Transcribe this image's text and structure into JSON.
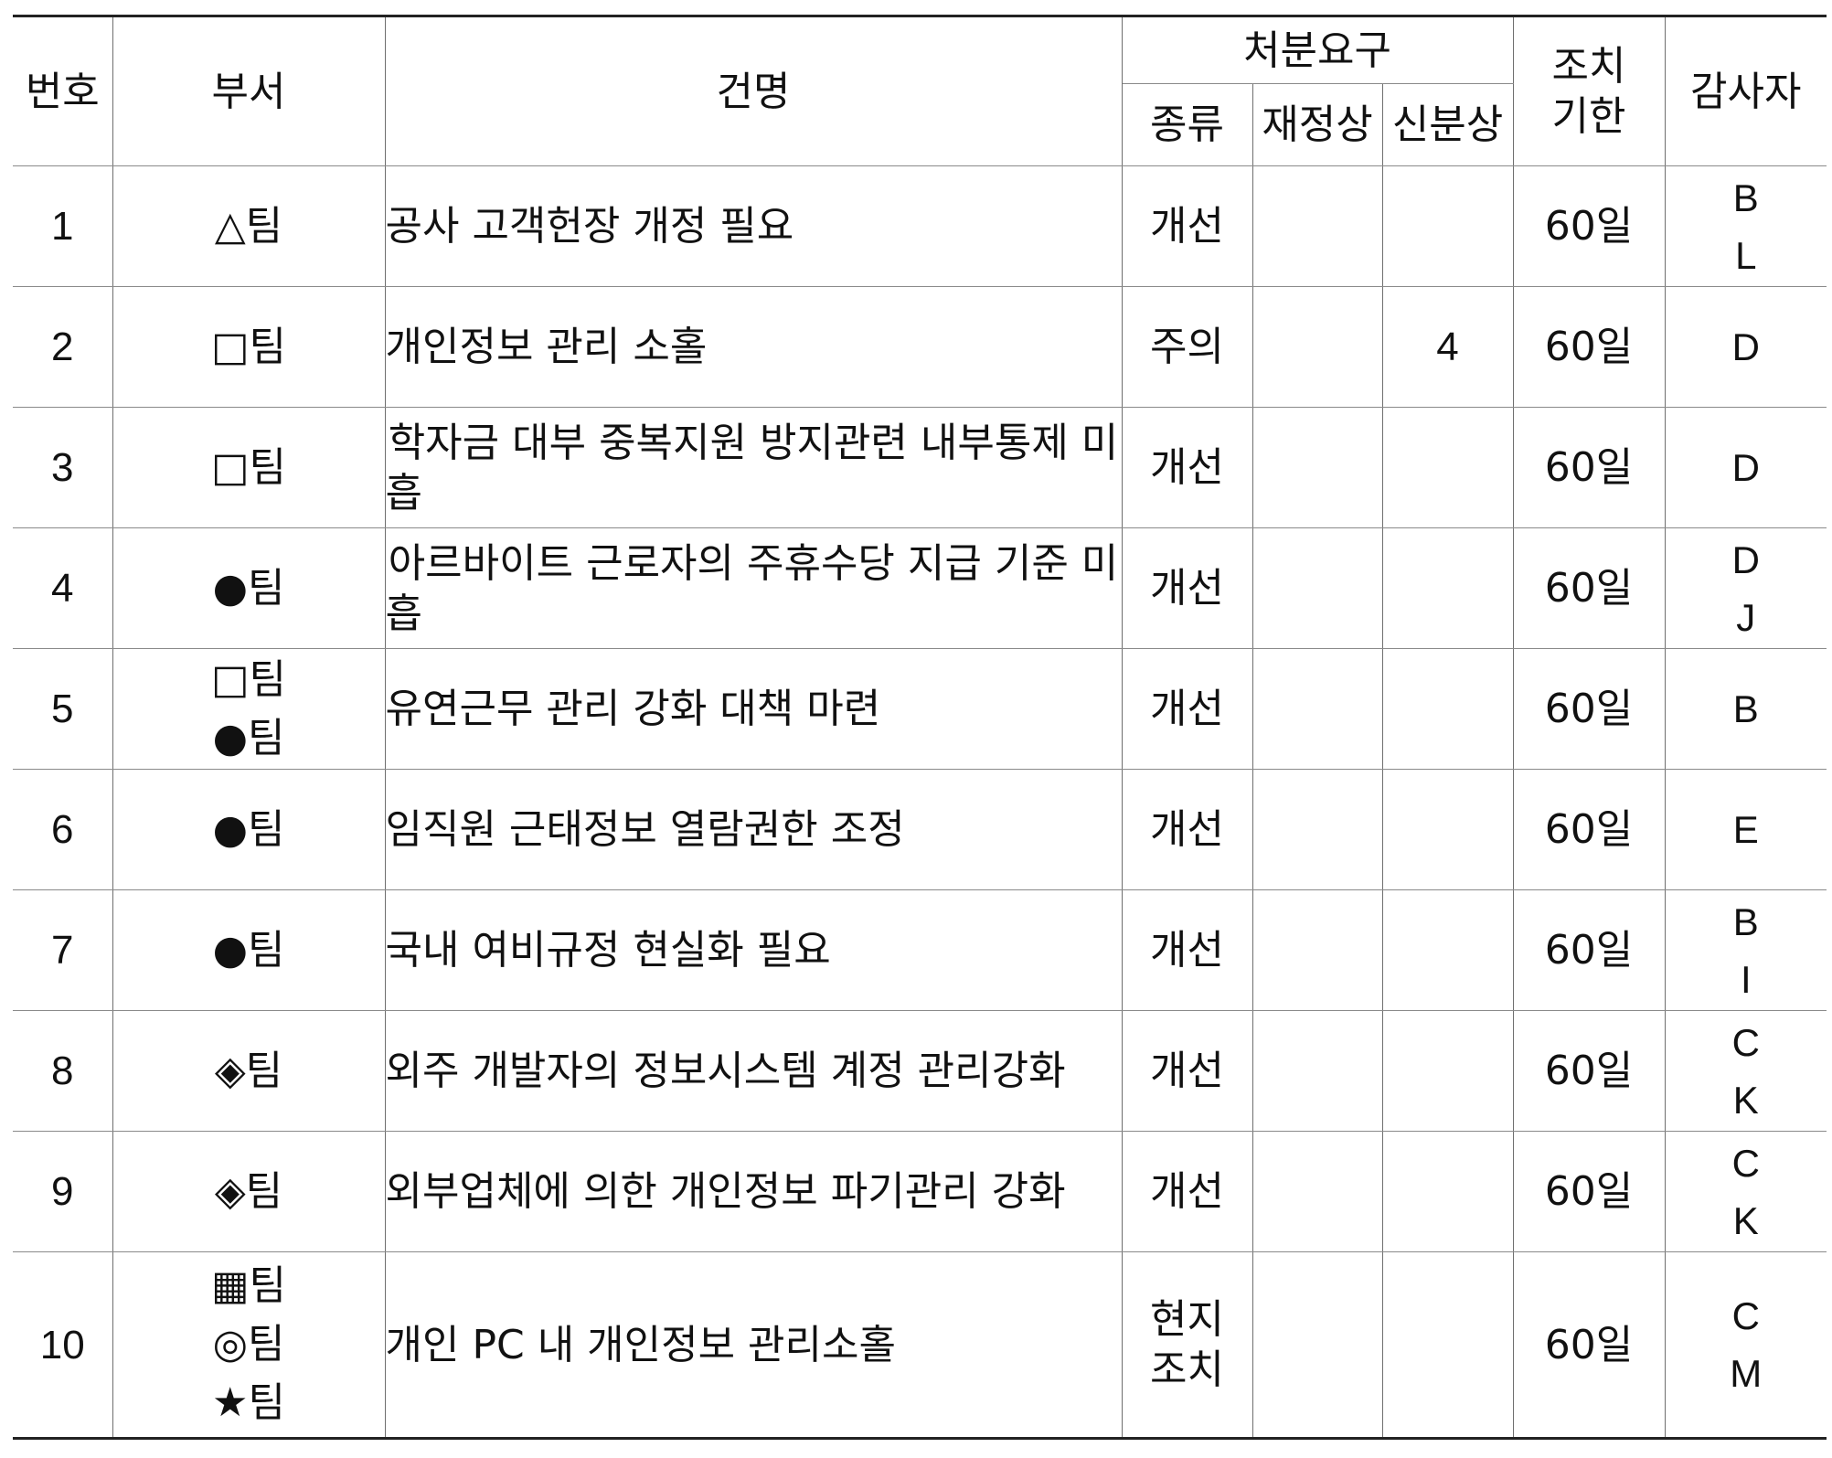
{
  "header": {
    "no": "번호",
    "dept": "부서",
    "title": "건명",
    "disposition": "처분요구",
    "kind": "종류",
    "financial": "재정상",
    "personnel": "신분상",
    "deadline_line1": "조치",
    "deadline_line2": "기한",
    "auditor": "감사자"
  },
  "rows": [
    {
      "no": "1",
      "depts": [
        "△팀"
      ],
      "title": "공사 고객헌장 개정 필요",
      "kind": [
        "개선"
      ],
      "financial": "",
      "personnel": "",
      "deadline": "60일",
      "auditors": [
        "B",
        "L"
      ]
    },
    {
      "no": "2",
      "depts": [
        "□팀"
      ],
      "title": "개인정보 관리 소홀",
      "kind": [
        "주의"
      ],
      "financial": "",
      "personnel": "4",
      "deadline": "60일",
      "auditors": [
        "D"
      ]
    },
    {
      "no": "3",
      "depts": [
        "□팀"
      ],
      "title": "학자금 대부 중복지원 방지관련 내부통제 미흡",
      "kind": [
        "개선"
      ],
      "financial": "",
      "personnel": "",
      "deadline": "60일",
      "auditors": [
        "D"
      ]
    },
    {
      "no": "4",
      "depts": [
        "●팀"
      ],
      "title": "아르바이트 근로자의 주휴수당 지급 기준 미흡",
      "kind": [
        "개선"
      ],
      "financial": "",
      "personnel": "",
      "deadline": "60일",
      "auditors": [
        "D",
        "J"
      ]
    },
    {
      "no": "5",
      "depts": [
        "□팀",
        "●팀"
      ],
      "title": "유연근무 관리 강화 대책 마련",
      "kind": [
        "개선"
      ],
      "financial": "",
      "personnel": "",
      "deadline": "60일",
      "auditors": [
        "B"
      ]
    },
    {
      "no": "6",
      "depts": [
        "●팀"
      ],
      "title": "임직원 근태정보 열람권한 조정",
      "kind": [
        "개선"
      ],
      "financial": "",
      "personnel": "",
      "deadline": "60일",
      "auditors": [
        "E"
      ]
    },
    {
      "no": "7",
      "depts": [
        "●팀"
      ],
      "title": "국내 여비규정 현실화 필요",
      "kind": [
        "개선"
      ],
      "financial": "",
      "personnel": "",
      "deadline": "60일",
      "auditors": [
        "B",
        "I"
      ]
    },
    {
      "no": "8",
      "depts": [
        "◈팀"
      ],
      "title": "외주 개발자의 정보시스템 계정 관리강화",
      "kind": [
        "개선"
      ],
      "financial": "",
      "personnel": "",
      "deadline": "60일",
      "auditors": [
        "C",
        "K"
      ]
    },
    {
      "no": "9",
      "depts": [
        "◈팀"
      ],
      "title": "외부업체에 의한 개인정보 파기관리 강화",
      "kind": [
        "개선"
      ],
      "financial": "",
      "personnel": "",
      "deadline": "60일",
      "auditors": [
        "C",
        "K"
      ]
    },
    {
      "no": "10",
      "depts": [
        "▦팀",
        "◎팀",
        "★팀"
      ],
      "title": "개인 PC 내 개인정보 관리소홀",
      "kind": [
        "현지",
        "조치"
      ],
      "financial": "",
      "personnel": "",
      "deadline": "60일",
      "auditors": [
        "C",
        "M"
      ]
    }
  ]
}
